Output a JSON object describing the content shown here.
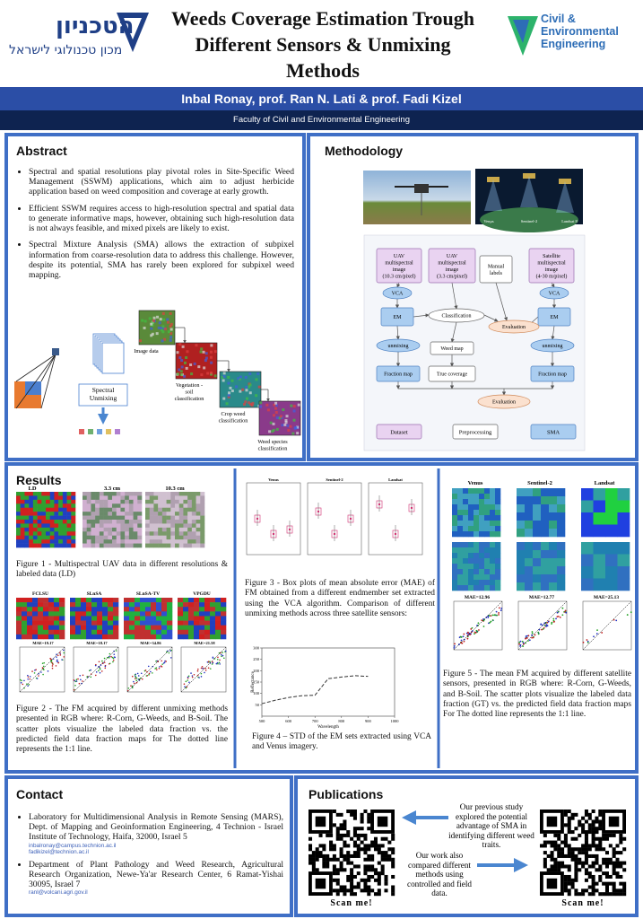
{
  "header": {
    "logo_name": "הטכניון",
    "logo_subtitle": "מכון טכנולוגי לישראל",
    "title_lines": [
      "Weeds Coverage Estimation Trough",
      "Different Sensors & Unmixing",
      "Methods"
    ],
    "dept_logo": [
      "Civil &",
      "Environmental",
      "Engineering"
    ],
    "authors": "Inbal Ronay, prof. Ran N. Lati & prof. Fadi Kizel",
    "affiliation": "Faculty of Civil and Environmental Engineering"
  },
  "abstract": {
    "heading": "Abstract",
    "bullets": [
      "Spectral and spatial resolutions play pivotal roles in Site-Specific Weed Management (SSWM) applications, which aim to adjust herbicide application based on weed composition and coverage at early growth.",
      "Efficient SSWM requires access to high-resolution spectral and spatial data to generate informative maps, however, obtaining such high-resolution data is not always feasible, and mixed pixels are likely to exist.",
      "Spectral Mixture Analysis (SMA) allows the extraction of subpixel information from coarse-resolution data to address this challenge. However, despite its potential, SMA has rarely been explored for subpixel weed mapping."
    ],
    "figure_labels": [
      "Image data",
      "Vegetation - soil classification",
      "Crop weed classification",
      "Weed species classification"
    ],
    "unmixing_label": "Spectral Unmixing"
  },
  "methodology": {
    "heading": "Methodology",
    "satellites": [
      "Venµs",
      "Sentinel-2",
      "Landsat 8"
    ],
    "nodes": [
      [
        "UAV",
        "multispectral",
        "image",
        "(10.3 cm/pixel)"
      ],
      [
        "UAV",
        "multispectral",
        "image",
        "(3.3 cm/pixel)"
      ],
      [
        "Manual",
        "labels"
      ],
      [
        "Satellite",
        "multispectral",
        "image",
        "(4-30 m/pixel)"
      ],
      [
        "VCA"
      ],
      [
        "VCA"
      ],
      [
        "EM"
      ],
      [
        "EM"
      ],
      [
        "Classification"
      ],
      [
        "Evaluation"
      ],
      [
        "unmixing"
      ],
      [
        "unmixing"
      ],
      [
        "Weed map"
      ],
      [
        "Fraction map"
      ],
      [
        "True coverage"
      ],
      [
        "Fraction map"
      ],
      [
        "Evaluation"
      ]
    ],
    "legend": [
      "Dataset",
      "Preprocessing",
      "SMA"
    ]
  },
  "results": {
    "heading": "Results",
    "fig1": {
      "labels": [
        "LD",
        "3.3 cm",
        "10.3 cm"
      ],
      "caption": "Figure 1 - Multispectral UAV data in different resolutions & labeled data (LD)"
    },
    "fig2": {
      "methods": [
        "FCLSU",
        "SLnSA",
        "SLnSA-TV",
        "VPGDU"
      ],
      "mae": [
        "MAE=19.17",
        "MAE=18.17",
        "MAE=34.86",
        "MAE=21.58"
      ],
      "caption": "Figure 2 - The FM acquired by different unmixing methods presented in RGB where: R-Corn, G-Weeds, and B-Soil. The scatter plots visualize the labeled data fraction vs. the predicted field data fraction maps for The dotted line represents the 1:1 line."
    },
    "fig3": {
      "sensors": [
        "Venus",
        "Sentinel-2",
        "Landsat"
      ],
      "caption": "Figure 3 - Box plots of mean absolute error (MAE) of FM obtained from a different endmember set extracted using the VCA algorithm. Comparison of different unmixing methods across three satellite sensors:"
    },
    "fig4": {
      "chart_data": {
        "type": "line",
        "x_label": "Wavelength",
        "y_label": "Reflectance",
        "x": [
          500,
          550,
          600,
          650,
          700,
          750,
          800,
          850,
          900
        ],
        "series": [
          {
            "color": "#333333",
            "values": [
              55,
              70,
              82,
              90,
              92,
              165,
              172,
              178,
              175
            ]
          }
        ],
        "xlim": [
          500,
          1000
        ],
        "xticks": [
          500,
          600,
          700,
          800,
          900,
          1000
        ],
        "ylim": [
          0,
          300
        ],
        "yticks": [
          50,
          100,
          150,
          200,
          250,
          300
        ]
      },
      "caption": "Figure 4 – STD of the EM sets extracted using VCA and Venus imagery."
    },
    "fig5": {
      "sensors": [
        "Venus",
        "Sentinel-2",
        "Landsat"
      ],
      "mae": [
        "MAE=12.96",
        "MAE=12.77",
        "MAE=25.13"
      ],
      "caption": "Figure 5 - The mean FM acquired by different satellite sensors, presented in RGB where: R-Corn, G-Weeds, and B-Soil. The scatter plots visualize the labeled data fraction (GT) vs. the predicted field data fraction maps For The dotted line represents the 1:1 line."
    }
  },
  "contact": {
    "heading": "Contact",
    "items": [
      {
        "text": "Laboratory for Multidimensional Analysis in Remote Sensing (MARS), Dept. of Mapping and Geoinformation Engineering, 4 Technion - Israel Institute of Technology, Haifa, 32000, Israel 5",
        "emails": [
          "inbalronay@campus.technion.ac.il",
          "fadikizel@technion.ac.il"
        ]
      },
      {
        "text": "Department of Plant Pathology and Weed Research, Agricultural Research Organization, Newe-Ya'ar Research Center, 6 Ramat-Yishai 30095, Israel 7",
        "emails": [
          "ranl@volcani.agri.gov.il"
        ]
      }
    ]
  },
  "publications": {
    "heading": "Publications",
    "notes": [
      "Our previous study explored the potential advantage of SMA in identifying different weed traits.",
      "Our work also compared different methods using controlled and field data."
    ],
    "scan": [
      "Scan me!",
      "Scan me!"
    ]
  }
}
